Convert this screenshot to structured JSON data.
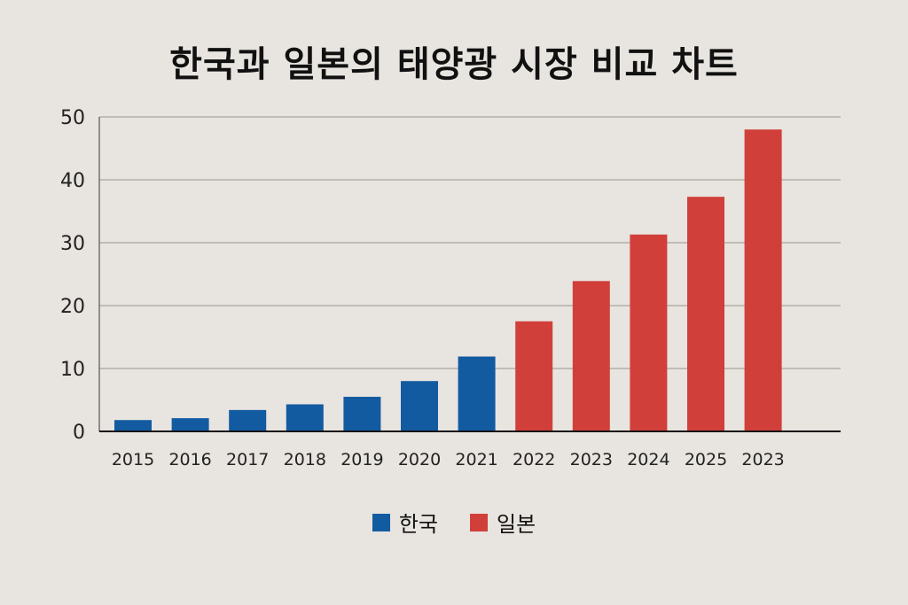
{
  "chart_data": {
    "type": "bar",
    "title": "한국과 일본의 태양광 시장 비교 차트",
    "xlabel": "",
    "ylabel": "",
    "categories": [
      "2015",
      "2016",
      "2017",
      "2018",
      "2019",
      "2020",
      "2021",
      "2022",
      "2023",
      "2024",
      "2025",
      "2023"
    ],
    "values": [
      1.8,
      2.1,
      3.4,
      4.3,
      5.5,
      8.0,
      11.9,
      17.5,
      23.9,
      31.3,
      37.3,
      48.0
    ],
    "bar_series": [
      "한국",
      "한국",
      "한국",
      "한국",
      "한국",
      "한국",
      "한국",
      "일본",
      "일본",
      "일본",
      "일본",
      "일본"
    ],
    "series": [
      {
        "name": "한국",
        "color": "#135ba1"
      },
      {
        "name": "일본",
        "color": "#d13f3a"
      }
    ],
    "ylim": [
      0,
      50
    ],
    "yticks": [
      0,
      10,
      20,
      30,
      40,
      50
    ],
    "grid": true,
    "legend": "bottom"
  }
}
